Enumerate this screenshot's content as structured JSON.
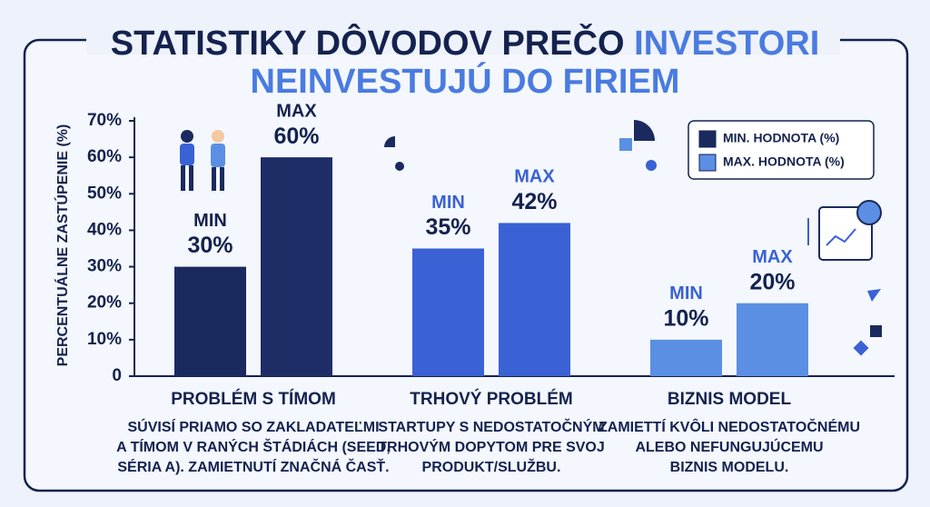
{
  "chart_data": {
    "type": "bar",
    "title": [
      "STATISTIKY DÔVODOV PREČO",
      "INVESTORI",
      "NEINVESTUJÚ DO FIRIEM"
    ],
    "y_label": "PERCENTUÁLNE ZASTÚPENIE (%)",
    "categories": [
      "PROBLÉM S TÍMOM",
      "TRHOVÝ PROBLÉM",
      "BIZNIS MODEL"
    ],
    "descriptions": [
      [
        "SÚVISÍ PRIAMO SO ZAKLADATEĽMI",
        "A TÍMOM V RANÝCH ŠTÁDIÁCH (SEED,",
        "SÉRIA A). ZAMIETNUTÍ ZNAČNÁ ČASŤ."
      ],
      [
        "STARTUPY S NEDOSTATOČNÝM",
        "TRHOVÝM DOPYTOM PRE SVOJ",
        "PRODUKT/SLUŽBU."
      ],
      [
        "ZAMIETTÍ KVÔLI NEDOSTATOČNÉMU",
        "ALEBO NEFUNGUJÚCEMU",
        "BIZNIS MODELU."
      ]
    ],
    "series": [
      {
        "name": "MIN. HODNOTA (%)",
        "tag": "MIN",
        "color": "#1b2a5e",
        "colors": [
          "#1b2a5e",
          "#3a62d4",
          "#5b8fe3"
        ],
        "values": [
          30,
          35,
          10
        ],
        "value_labels": [
          "30%",
          "35%",
          "10%"
        ]
      },
      {
        "name": "MAX. HODNOTA (%)",
        "tag": "MAX",
        "color": "#5b8fe3",
        "colors": [
          "#1e2d66",
          "#3a62d4",
          "#5b8fe3"
        ],
        "values": [
          60,
          42,
          20
        ],
        "value_labels": [
          "60%",
          "42%",
          "20%"
        ]
      }
    ],
    "ylim": [
      0,
      70
    ],
    "yticks": [
      0,
      {
        "value": 10,
        "label": "10%"
      },
      {
        "value": 20,
        "label": "20%"
      },
      {
        "value": 30,
        "label": "30%"
      },
      {
        "value": 40,
        "label": "40%"
      },
      {
        "value": 50,
        "label": "50%"
      },
      {
        "value": 60,
        "label": "60%"
      },
      {
        "value": 70,
        "label": "70%"
      }
    ],
    "legend": "top-right"
  }
}
